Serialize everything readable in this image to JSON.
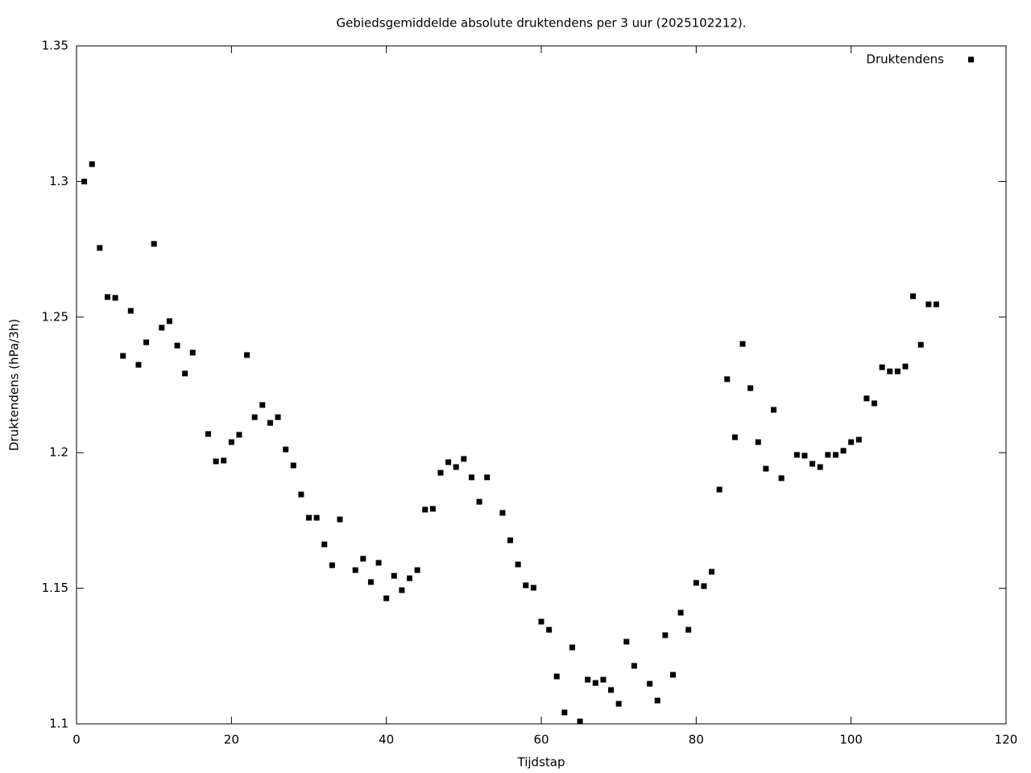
{
  "chart_data": {
    "type": "scatter",
    "title": "Gebiedsgemiddelde absolute druktendens per 3 uur (2025102212).",
    "xlabel": "Tijdstap",
    "ylabel": "Druktendens (hPa/3h)",
    "legend": "top-right",
    "series": [
      {
        "name": "Druktendens",
        "color": "#000000",
        "x": [
          1,
          2,
          3,
          4,
          5,
          6,
          7,
          8,
          9,
          10,
          11,
          12,
          13,
          14,
          15,
          17,
          18,
          19,
          20,
          21,
          22,
          23,
          24,
          25,
          26,
          27,
          28,
          29,
          30,
          31,
          32,
          33,
          34,
          36,
          37,
          38,
          39,
          40,
          41,
          42,
          43,
          44,
          45,
          46,
          47,
          48,
          49,
          50,
          51,
          52,
          53,
          55,
          56,
          57,
          58,
          59,
          60,
          61,
          62,
          63,
          64,
          65,
          66,
          67,
          68,
          69,
          70,
          71,
          72,
          74,
          75,
          76,
          77,
          78,
          79,
          80,
          81,
          82,
          83,
          84,
          85,
          86,
          87,
          88,
          89,
          90,
          91,
          93,
          94,
          95,
          96,
          97,
          98,
          99,
          100,
          101,
          102,
          103,
          104,
          105,
          106,
          107,
          108,
          109,
          110,
          111
        ],
        "values": [
          1.3,
          1.3064,
          1.2755,
          1.2574,
          1.2571,
          1.2357,
          1.2523,
          1.2324,
          1.2407,
          1.277,
          1.2461,
          1.2485,
          1.2395,
          1.2292,
          1.2369,
          1.2069,
          1.1968,
          1.1971,
          1.2039,
          1.2066,
          1.236,
          1.2131,
          1.2176,
          1.211,
          1.2131,
          1.2012,
          1.1953,
          1.1846,
          1.176,
          1.176,
          1.1662,
          1.1585,
          1.1754,
          1.1567,
          1.1609,
          1.1523,
          1.1594,
          1.1463,
          1.1546,
          1.1493,
          1.1537,
          1.1567,
          1.179,
          1.1793,
          1.1926,
          1.1965,
          1.1947,
          1.1977,
          1.1909,
          1.1819,
          1.1909,
          1.1778,
          1.1677,
          1.1588,
          1.1511,
          1.1502,
          1.1377,
          1.1347,
          1.1175,
          1.1042,
          1.1282,
          1.1009,
          1.1163,
          1.1151,
          1.1163,
          1.1125,
          1.1074,
          1.1303,
          1.1214,
          1.1148,
          1.1086,
          1.1327,
          1.1181,
          1.141,
          1.1347,
          1.152,
          1.1508,
          1.1561,
          1.1864,
          1.2271,
          1.2057,
          1.2401,
          1.2238,
          1.2039,
          1.1941,
          1.2158,
          1.1906,
          1.1992,
          1.1989,
          1.1959,
          1.1947,
          1.1992,
          1.1992,
          1.2007,
          1.2039,
          1.2048,
          1.22,
          1.2182,
          1.2315,
          1.23,
          1.23,
          1.2318,
          1.2577,
          1.2398,
          1.2547,
          1.2547
        ]
      }
    ],
    "xlim": [
      0,
      120
    ],
    "xticks": [
      0,
      20,
      40,
      60,
      80,
      100,
      120
    ],
    "ylim": [
      1.1,
      1.35
    ],
    "yticks": [
      1.1,
      1.15,
      1.2,
      1.25,
      1.3,
      1.35
    ]
  }
}
